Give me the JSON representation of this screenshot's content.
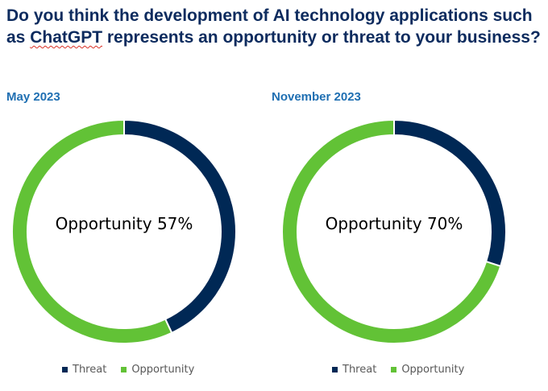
{
  "title_part1": "Do you think the development of AI technology applications such as ",
  "title_word": "ChatGPT",
  "title_part2": " represents an opportunity or threat to your business?",
  "colors": {
    "threat": "#002855",
    "opportunity": "#62c236",
    "title": "#0d2b5e",
    "subtitle": "#1f6fb2"
  },
  "chart_data": [
    {
      "type": "pie",
      "variant": "donut",
      "title": "May 2023",
      "center_label": "Opportunity 57%",
      "categories": [
        "Threat",
        "Opportunity"
      ],
      "values": [
        43,
        57
      ],
      "legend": [
        "Threat",
        "Opportunity"
      ],
      "legend_position": "bottom"
    },
    {
      "type": "pie",
      "variant": "donut",
      "title": "November 2023",
      "center_label": "Opportunity 70%",
      "categories": [
        "Threat",
        "Opportunity"
      ],
      "values": [
        30,
        70
      ],
      "legend": [
        "Threat",
        "Opportunity"
      ],
      "legend_position": "bottom"
    }
  ]
}
